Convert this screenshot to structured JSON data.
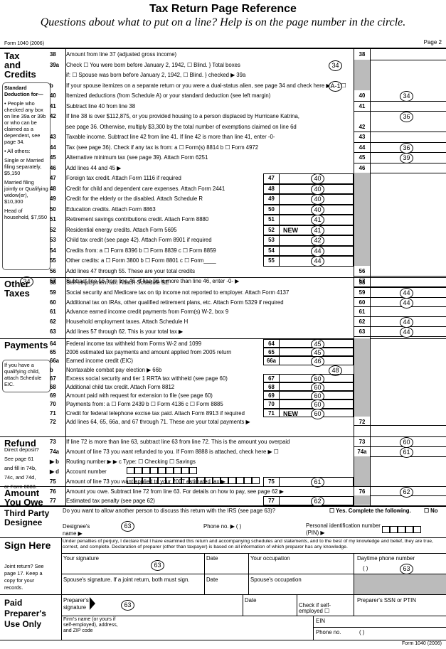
{
  "header": {
    "title": "Tax Return Page Reference",
    "subtitle": "Questions about what to put on a line? Help is on the page number in the circle.",
    "form_id": "Form 1040 (2006)",
    "page": "Page 2"
  },
  "sections": [
    {
      "label": "Tax and Credits",
      "sidebar": [
        "Standard Deduction for—",
        "• People who checked any box on line 39a or 39b or who can be claimed as a dependent, see page 34.",
        "• All others:",
        "Single or Married filing separately, $5,150",
        "Married filing jointly or Qualifying widow(er), $10,300",
        "Head of household, $7,550"
      ],
      "margin_ref": "34",
      "lines": [
        {
          "num": "38",
          "text": [
            "Amount from line 37 (adjusted gross income)"
          ],
          "box": "38"
        },
        {
          "num": "39a",
          "text": [
            "Check  ☐ You were born before January 2, 1942,   ☐ Blind.  } Total boxes",
            "if:     ☐ Spouse was born before January 2, 1942, ☐ Blind.  } checked ▶ 39a"
          ],
          "ref": "34"
        },
        {
          "num": "b",
          "text": [
            "If your spouse itemizes on a separate return or you were a dual-status alien, see page 34 and check here ▶39b ☐"
          ],
          "ref": "A-1"
        },
        {
          "num": "40",
          "text": [
            "Itemized deductions (from Schedule A) or your standard deduction (see left margin)"
          ],
          "box": "40",
          "ref": "34"
        },
        {
          "num": "41",
          "text": [
            "Subtract line 40 from line 38"
          ],
          "box": "41"
        },
        {
          "num": "42",
          "text": [
            "If line 38 is over $112,875, or you provided housing to a person displaced by Hurricane Katrina,",
            "see page 36. Otherwise, multiply $3,300 by the total number of exemptions claimed on line 6d"
          ],
          "box": "42",
          "ref": "36"
        },
        {
          "num": "43",
          "text": [
            "Taxable income. Subtract line 42 from line 41. If line 42 is more than line 41, enter -0-"
          ],
          "box": "43"
        },
        {
          "num": "44",
          "text": [
            "Tax (see page 36). Check if any tax is from:  a ☐ Form(s) 8814   b ☐ Form 4972"
          ],
          "box": "44",
          "ref": "36"
        },
        {
          "num": "45",
          "text": [
            "Alternative minimum tax (see page 39). Attach Form 6251"
          ],
          "box": "45",
          "ref": "39"
        },
        {
          "num": "46",
          "text": [
            "Add lines 44 and 45  ▶"
          ],
          "box": "46"
        },
        {
          "num": "47",
          "text": [
            "Foreign tax credit. Attach Form 1116 if required"
          ],
          "inner_box": "47",
          "ref": "40"
        },
        {
          "num": "48",
          "text": [
            "Credit for child and dependent care expenses. Attach Form 2441"
          ],
          "inner_box": "48",
          "ref": "40"
        },
        {
          "num": "49",
          "text": [
            "Credit for the elderly or the disabled. Attach Schedule R"
          ],
          "inner_box": "49",
          "ref": "40"
        },
        {
          "num": "50",
          "text": [
            "Education credits. Attach Form 8863"
          ],
          "inner_box": "50",
          "ref": "40"
        },
        {
          "num": "51",
          "text": [
            "Retirement savings contributions credit. Attach Form 8880"
          ],
          "inner_box": "51",
          "ref": "41"
        },
        {
          "num": "52",
          "text": [
            "Residential energy credits. Attach Form 5695"
          ],
          "inner_box": "52",
          "ref": "41",
          "note": "NEW"
        },
        {
          "num": "53",
          "text": [
            "Child tax credit (see page 42). Attach Form 8901 if required"
          ],
          "inner_box": "53",
          "ref": "42"
        },
        {
          "num": "54",
          "text": [
            "Credits from:  a ☐ Form 8396  b ☐ Form 8839  c ☐ Form 8859"
          ],
          "inner_box": "54",
          "ref": "44"
        },
        {
          "num": "55",
          "text": [
            "Other credits:  a ☐ Form 3800  b ☐ Form 8801  c ☐ Form____"
          ],
          "inner_box": "55",
          "ref": "44"
        },
        {
          "num": "56",
          "text": [
            "Add lines 47 through 55. These are your total credits"
          ],
          "box": "56"
        },
        {
          "num": "57",
          "text": [
            "Subtract line 56 from line 46. If line 56 is more than line 46, enter -0-  ▶"
          ],
          "box": "57"
        }
      ]
    },
    {
      "label": "Other Taxes",
      "lines": [
        {
          "num": "58",
          "text": [
            "Self-employment tax. Attach Schedule SE"
          ],
          "box": "58"
        },
        {
          "num": "59",
          "text": [
            "Social security and Medicare tax on tip income not reported to employer. Attach Form 4137"
          ],
          "box": "59",
          "ref": "44"
        },
        {
          "num": "60",
          "text": [
            "Additional tax on IRAs, other qualified retirement plans, etc. Attach Form 5329 if required"
          ],
          "box": "60",
          "ref": "44"
        },
        {
          "num": "61",
          "text": [
            "Advance earned income credit payments from Form(s) W-2, box 9"
          ],
          "box": "61"
        },
        {
          "num": "62",
          "text": [
            "Household employment taxes. Attach Schedule H"
          ],
          "box": "62",
          "ref": "44"
        },
        {
          "num": "63",
          "text": [
            "Add lines 57 through 62. This is your total tax  ▶"
          ],
          "box": "63",
          "ref": "44"
        }
      ]
    },
    {
      "label": "Payments",
      "sidebar": [
        "If you have a qualifying child, attach Schedule EIC."
      ],
      "lines": [
        {
          "num": "64",
          "text": [
            "Federal income tax withheld from Forms W-2 and 1099"
          ],
          "inner_box": "64",
          "ref": "45"
        },
        {
          "num": "65",
          "text": [
            "2006 estimated tax payments and amount applied from 2005 return"
          ],
          "inner_box": "65",
          "ref": "45"
        },
        {
          "num": "66a",
          "text": [
            "Earned income credit (EIC)"
          ],
          "inner_box": "66a",
          "ref": "46"
        },
        {
          "num": "b",
          "text": [
            "Nontaxable combat pay election  ▶  66b"
          ],
          "ref": "48"
        },
        {
          "num": "67",
          "text": [
            "Excess social security and tier 1 RRTA tax withheld (see page 60)"
          ],
          "inner_box": "67",
          "ref": "60"
        },
        {
          "num": "68",
          "text": [
            "Additional child tax credit. Attach Form 8812"
          ],
          "inner_box": "68",
          "ref": "60"
        },
        {
          "num": "69",
          "text": [
            "Amount paid with request for extension to file (see page 60)"
          ],
          "inner_box": "69",
          "ref": "60"
        },
        {
          "num": "70",
          "text": [
            "Payments from:  a ☐ Form 2439  b ☐ Form 4136  c ☐ Form 8885"
          ],
          "inner_box": "70",
          "ref": "60"
        },
        {
          "num": "71",
          "text": [
            "Credit for federal telephone excise tax paid. Attach Form 8913 if required"
          ],
          "inner_box": "71",
          "ref": "60",
          "note": "NEW"
        },
        {
          "num": "72",
          "text": [
            "Add lines 64, 65, 66a, and 67 through 71. These are your total payments  ▶"
          ],
          "box": "72"
        }
      ]
    },
    {
      "label": "Refund",
      "sidebar": [
        "Direct deposit?",
        "See page 61",
        "and fill in 74b,",
        "74c, and 74d,",
        "or Form 8888."
      ],
      "lines": [
        {
          "num": "73",
          "text": [
            "If line 72 is more than line 63, subtract line 63 from line 72. This is the amount you overpaid"
          ],
          "box": "73",
          "ref": "60"
        },
        {
          "num": "74a",
          "text": [
            "Amount of line 73 you want refunded to you. If Form 8888 is attached, check here ▶ ☐"
          ],
          "box": "74a",
          "ref": "61"
        },
        {
          "num": "▶  b",
          "text": [
            "Routing number ▶                                                   ▶ c Type: ☐ Checking  ☐ Savings"
          ]
        },
        {
          "num": "▶  d",
          "text": [
            "Account number"
          ]
        },
        {
          "num": "75",
          "text": [
            "Amount of line 73 you want applied to your 2007 estimated tax  ▶"
          ],
          "inner_box": "75",
          "ref": "61"
        }
      ]
    },
    {
      "label": "Amount You Owe",
      "lines": [
        {
          "num": "76",
          "text": [
            "Amount you owe. Subtract line 72 from line 63. For details on how to pay, see page 62  ▶"
          ],
          "box": "76",
          "ref": "62"
        },
        {
          "num": "77",
          "text": [
            "Estimated tax penalty (see page 62)"
          ],
          "inner_box": "77",
          "ref": "62"
        }
      ]
    }
  ],
  "designee": {
    "label": "Third Party Designee",
    "question": "Do you want to allow another person to discuss this return with the IRS (see page 63)?",
    "yes": "☐ Yes. Complete the following.",
    "no": "☐ No",
    "name_label": "Designee's name  ▶",
    "name_ref": "63",
    "phone_label": "Phone no.  ▶  (     )",
    "pin_label": "Personal identification number (PIN)  ▶"
  },
  "sign": {
    "label": "Sign Here",
    "sidebar": "Joint return? See page 17. Keep a copy for your records.",
    "declaration": "Under penalties of perjury, I declare that I have examined this return and accompanying schedules and statements, and to the best of my knowledge and belief, they are true, correct, and complete. Declaration of preparer (other than taxpayer) is based on all information of which preparer has any knowledge.",
    "your_signature": "Your signature",
    "signature_ref": "63",
    "date": "Date",
    "occupation": "Your occupation",
    "phone": "Daytime phone number",
    "phone_parens": "(     )",
    "phone_ref": "63",
    "spouse_signature": "Spouse's signature. If a joint return, both must sign.",
    "spouse_date": "Date",
    "spouse_occupation": "Spouse's occupation"
  },
  "preparer": {
    "label": "Paid Preparer's Use Only",
    "signature": "Preparer's signature",
    "ref": "63",
    "date": "Date",
    "self_employed": "Check if self-employed ☐",
    "ssn": "Preparer's SSN or PTIN",
    "firm": "Firm's name (or yours if self-employed), address, and ZIP code",
    "ein": "EIN",
    "phone": "Phone no.",
    "phone_parens": "(     )"
  },
  "footer": "Form 1040 (2006)"
}
